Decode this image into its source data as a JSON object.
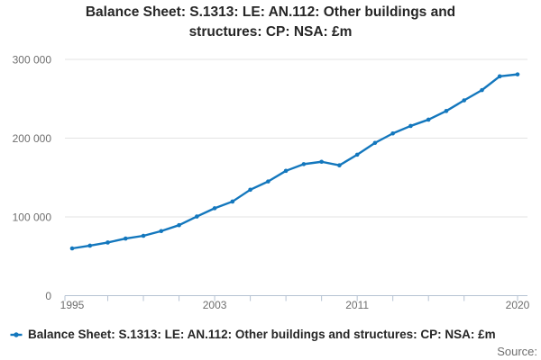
{
  "header": {
    "title_lines": [
      "Balance Sheet: S.1313: LE: AN.112: Other buildings and",
      "structures: CP: NSA: £m"
    ]
  },
  "legend": {
    "label": "Balance Sheet: S.1313: LE: AN.112: Other buildings and structures: CP: NSA: £m",
    "marker": "line-dot-icon"
  },
  "footer": {
    "source_label": "Source:"
  },
  "colors": {
    "line": "#1377bd",
    "grid": "#e3e3e3",
    "axis": "#b6c3d3",
    "tick_text": "#6e6e6e",
    "title_text": "#262626",
    "legend_text": "#262626",
    "source_text": "#6e6e6e"
  },
  "chart_data": {
    "type": "line",
    "title": "Balance Sheet: S.1313: LE: AN.112: Other buildings and structures: CP: NSA: £m",
    "x": [
      1995,
      1996,
      1997,
      1998,
      1999,
      2000,
      2001,
      2002,
      2003,
      2004,
      2005,
      2006,
      2007,
      2008,
      2009,
      2010,
      2011,
      2012,
      2013,
      2014,
      2015,
      2016,
      2017,
      2018,
      2019,
      2020
    ],
    "series": [
      {
        "name": "Balance Sheet: S.1313: LE: AN.112: Other buildings and structures: CP: NSA: £m",
        "values": [
          60000,
          63500,
          67500,
          72500,
          76000,
          82000,
          89500,
          100500,
          111000,
          119500,
          134500,
          145000,
          158500,
          167000,
          170000,
          165500,
          179000,
          194000,
          206000,
          215500,
          223500,
          234500,
          248000,
          261000,
          278500,
          281000
        ]
      }
    ],
    "xlabel": "",
    "ylabel": "",
    "ylim": [
      0,
      300000
    ],
    "xlim": [
      1995,
      2020
    ],
    "y_ticks": [
      0,
      100000,
      200000,
      300000
    ],
    "y_tick_labels": [
      "0",
      "100 000",
      "200 000",
      "300 000"
    ],
    "x_label_years": [
      1995,
      2003,
      2011,
      2020
    ],
    "x_tick_years": [
      1997,
      1999,
      2001,
      2003,
      2005,
      2007,
      2009,
      2011,
      2013,
      2015,
      2017,
      2020
    ],
    "grid": "horizontal-only",
    "legend_position": "bottom-left",
    "markers": true
  }
}
